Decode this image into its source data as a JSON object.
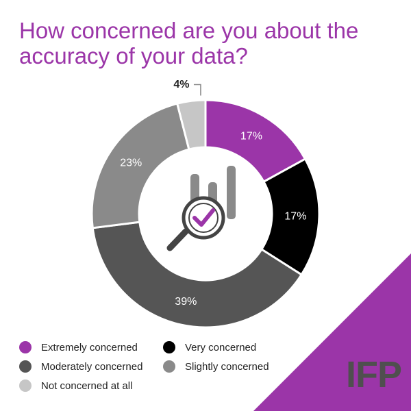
{
  "title": "How concerned are you about the accuracy of your data?",
  "brand": "IFP",
  "colors": {
    "accent": "#9b35a8",
    "corner": "#9b35a8",
    "icon_dark": "#444444",
    "icon_light": "#888888"
  },
  "icon_name": "magnifier-check-chart-icon",
  "chart_data": {
    "type": "pie",
    "donut": true,
    "title": "How concerned are you about the accuracy of your data?",
    "labels": [
      "Extremely concerned",
      "Very concerned",
      "Moderately concerned",
      "Slightly concerned",
      "Not concerned at all"
    ],
    "values": [
      17,
      17,
      39,
      23,
      4
    ],
    "value_labels": [
      "17%",
      "17%",
      "39%",
      "23%",
      "4%"
    ],
    "colors": [
      "#9b35a8",
      "#000000",
      "#555555",
      "#8a8a8a",
      "#c6c6c6"
    ],
    "label_colors": [
      "#ffffff",
      "#ffffff",
      "#ffffff",
      "#ffffff",
      "#222222"
    ],
    "legend_position": "bottom-left"
  }
}
